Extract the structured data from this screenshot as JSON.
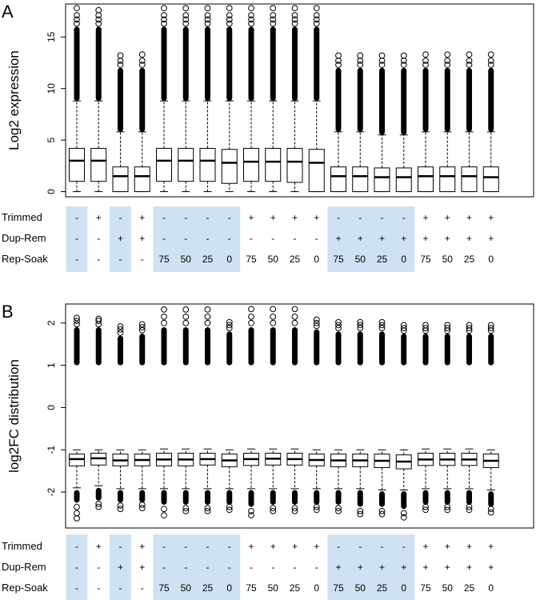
{
  "chart_data": [
    {
      "type": "box",
      "panel_label": "A",
      "ylabel": "Log2 expression",
      "ylim": [
        -0.5,
        18.2
      ],
      "yticks": [
        0,
        5,
        10,
        15
      ],
      "grid": false,
      "boxes": [
        {
          "q1": 1.0,
          "median": 3.0,
          "q3": 4.2,
          "whisker_low": 0.0,
          "whisker_high": 8.8,
          "outliers_from": 8.8,
          "outliers_to": 16.0,
          "outlier_points": [
            16.3,
            16.7,
            17.1,
            17.8
          ]
        },
        {
          "q1": 1.0,
          "median": 3.0,
          "q3": 4.2,
          "whisker_low": 0.0,
          "whisker_high": 8.8,
          "outliers_from": 8.8,
          "outliers_to": 16.0,
          "outlier_points": [
            16.3,
            16.7,
            17.1,
            17.6
          ]
        },
        {
          "q1": 0.0,
          "median": 1.5,
          "q3": 2.4,
          "whisker_low": 0.0,
          "whisker_high": 5.8,
          "outliers_from": 5.8,
          "outliers_to": 12.0,
          "outlier_points": [
            12.3,
            12.7,
            13.2
          ]
        },
        {
          "q1": 0.0,
          "median": 1.5,
          "q3": 2.4,
          "whisker_low": 0.0,
          "whisker_high": 5.8,
          "outliers_from": 5.8,
          "outliers_to": 12.0,
          "outlier_points": [
            12.3,
            12.7,
            13.3
          ]
        },
        {
          "q1": 1.0,
          "median": 3.0,
          "q3": 4.2,
          "whisker_low": 0.0,
          "whisker_high": 8.8,
          "outliers_from": 8.8,
          "outliers_to": 16.0,
          "outlier_points": [
            16.3,
            16.7,
            17.1,
            17.8
          ]
        },
        {
          "q1": 1.0,
          "median": 3.0,
          "q3": 4.2,
          "whisker_low": 0.0,
          "whisker_high": 8.8,
          "outliers_from": 8.8,
          "outliers_to": 16.0,
          "outlier_points": [
            16.3,
            16.7,
            17.1,
            17.8
          ]
        },
        {
          "q1": 1.0,
          "median": 3.0,
          "q3": 4.2,
          "whisker_low": 0.0,
          "whisker_high": 8.8,
          "outliers_from": 8.8,
          "outliers_to": 16.0,
          "outlier_points": [
            16.3,
            16.7,
            17.1,
            17.8
          ]
        },
        {
          "q1": 0.8,
          "median": 2.8,
          "q3": 4.1,
          "whisker_low": 0.0,
          "whisker_high": 8.8,
          "outliers_from": 8.8,
          "outliers_to": 16.0,
          "outlier_points": [
            16.3,
            16.7,
            17.1,
            17.8
          ]
        },
        {
          "q1": 1.0,
          "median": 2.9,
          "q3": 4.2,
          "whisker_low": 0.0,
          "whisker_high": 8.8,
          "outliers_from": 8.8,
          "outliers_to": 16.0,
          "outlier_points": [
            16.3,
            16.7,
            17.1,
            17.8
          ]
        },
        {
          "q1": 1.0,
          "median": 2.9,
          "q3": 4.2,
          "whisker_low": 0.0,
          "whisker_high": 8.8,
          "outliers_from": 8.8,
          "outliers_to": 16.0,
          "outlier_points": [
            16.3,
            16.7,
            17.1,
            17.8
          ]
        },
        {
          "q1": 0.9,
          "median": 2.9,
          "q3": 4.2,
          "whisker_low": 0.0,
          "whisker_high": 8.8,
          "outliers_from": 8.8,
          "outliers_to": 16.0,
          "outlier_points": [
            16.3,
            16.7,
            17.1,
            17.8
          ]
        },
        {
          "q1": 0.0,
          "median": 2.8,
          "q3": 4.1,
          "whisker_low": 0.0,
          "whisker_high": 8.8,
          "outliers_from": 8.8,
          "outliers_to": 16.0,
          "outlier_points": [
            16.3,
            16.7,
            17.1,
            17.8
          ]
        },
        {
          "q1": 0.0,
          "median": 1.5,
          "q3": 2.4,
          "whisker_low": 0.0,
          "whisker_high": 5.8,
          "outliers_from": 5.8,
          "outliers_to": 12.0,
          "outlier_points": [
            12.3,
            12.7,
            13.2
          ]
        },
        {
          "q1": 0.0,
          "median": 1.5,
          "q3": 2.4,
          "whisker_low": 0.0,
          "whisker_high": 5.8,
          "outliers_from": 5.8,
          "outliers_to": 12.0,
          "outlier_points": [
            12.3,
            12.7,
            13.2
          ]
        },
        {
          "q1": 0.0,
          "median": 1.4,
          "q3": 2.3,
          "whisker_low": 0.0,
          "whisker_high": 5.5,
          "outliers_from": 5.5,
          "outliers_to": 12.0,
          "outlier_points": [
            12.3,
            12.7,
            13.2
          ]
        },
        {
          "q1": 0.0,
          "median": 1.4,
          "q3": 2.3,
          "whisker_low": 0.0,
          "whisker_high": 5.5,
          "outliers_from": 5.5,
          "outliers_to": 12.0,
          "outlier_points": [
            12.3,
            12.7,
            13.2
          ]
        },
        {
          "q1": 0.0,
          "median": 1.5,
          "q3": 2.4,
          "whisker_low": 0.0,
          "whisker_high": 5.8,
          "outliers_from": 5.8,
          "outliers_to": 12.0,
          "outlier_points": [
            12.3,
            12.7,
            13.3
          ]
        },
        {
          "q1": 0.0,
          "median": 1.5,
          "q3": 2.4,
          "whisker_low": 0.0,
          "whisker_high": 5.8,
          "outliers_from": 5.8,
          "outliers_to": 12.0,
          "outlier_points": [
            12.3,
            12.7,
            13.3
          ]
        },
        {
          "q1": 0.0,
          "median": 1.5,
          "q3": 2.4,
          "whisker_low": 0.0,
          "whisker_high": 5.8,
          "outliers_from": 5.8,
          "outliers_to": 12.0,
          "outlier_points": [
            12.3,
            12.7,
            13.3
          ]
        },
        {
          "q1": 0.0,
          "median": 1.4,
          "q3": 2.4,
          "whisker_low": 0.0,
          "whisker_high": 5.8,
          "outliers_from": 5.8,
          "outliers_to": 12.0,
          "outlier_points": [
            12.3,
            12.7,
            13.3
          ]
        }
      ]
    },
    {
      "type": "box",
      "panel_label": "B",
      "ylabel": "log2FC distribution",
      "ylim": [
        -2.85,
        2.45
      ],
      "yticks": [
        -2,
        -1,
        0,
        1,
        2
      ],
      "grid": false,
      "boxes": [
        {
          "q1": -1.38,
          "median": -1.22,
          "q3": -1.1,
          "whisker_low": -1.9,
          "whisker_high": -1.0,
          "upper_outliers_from": 1.0,
          "upper_outliers_to": 1.9,
          "upper_points": [
            1.97,
            2.05,
            2.12
          ],
          "lower_outliers_from": -1.95,
          "lower_outliers_to": -2.25,
          "lower_points": [
            -2.35,
            -2.5,
            -2.62
          ]
        },
        {
          "q1": -1.36,
          "median": -1.2,
          "q3": -1.08,
          "whisker_low": -1.85,
          "whisker_high": -1.0,
          "upper_outliers_from": 1.0,
          "upper_outliers_to": 1.9,
          "upper_points": [
            1.97,
            2.05,
            2.1
          ],
          "lower_outliers_from": -1.9,
          "lower_outliers_to": -2.2,
          "lower_points": [
            -2.28,
            -2.35
          ]
        },
        {
          "q1": -1.38,
          "median": -1.25,
          "q3": -1.1,
          "whisker_low": -1.92,
          "whisker_high": -1.0,
          "upper_outliers_from": 1.0,
          "upper_outliers_to": 1.7,
          "upper_points": [
            1.77,
            1.85,
            1.92
          ],
          "lower_outliers_from": -1.95,
          "lower_outliers_to": -2.25,
          "lower_points": [
            -2.32,
            -2.4
          ]
        },
        {
          "q1": -1.38,
          "median": -1.24,
          "q3": -1.1,
          "whisker_low": -1.92,
          "whisker_high": -1.0,
          "upper_outliers_from": 1.0,
          "upper_outliers_to": 1.75,
          "upper_points": [
            1.83,
            1.9,
            1.97
          ],
          "lower_outliers_from": -1.95,
          "lower_outliers_to": -2.25,
          "lower_points": [
            -2.3,
            -2.38
          ]
        },
        {
          "q1": -1.38,
          "median": -1.23,
          "q3": -1.08,
          "whisker_low": -1.92,
          "whisker_high": -0.98,
          "upper_outliers_from": 1.0,
          "upper_outliers_to": 1.9,
          "upper_points": [
            2.0,
            2.15,
            2.32
          ],
          "lower_outliers_from": -1.95,
          "lower_outliers_to": -2.3,
          "lower_points": [
            -2.4,
            -2.55
          ]
        },
        {
          "q1": -1.38,
          "median": -1.23,
          "q3": -1.08,
          "whisker_low": -1.92,
          "whisker_high": -0.98,
          "upper_outliers_from": 1.0,
          "upper_outliers_to": 1.9,
          "upper_points": [
            2.0,
            2.15,
            2.32
          ],
          "lower_outliers_from": -1.95,
          "lower_outliers_to": -2.3,
          "lower_points": [
            -2.38,
            -2.45
          ]
        },
        {
          "q1": -1.36,
          "median": -1.22,
          "q3": -1.08,
          "whisker_low": -1.92,
          "whisker_high": -0.98,
          "upper_outliers_from": 1.0,
          "upper_outliers_to": 1.9,
          "upper_points": [
            2.0,
            2.15,
            2.32
          ],
          "lower_outliers_from": -1.95,
          "lower_outliers_to": -2.3,
          "lower_points": [
            -2.38,
            -2.45
          ]
        },
        {
          "q1": -1.4,
          "median": -1.25,
          "q3": -1.1,
          "whisker_low": -1.92,
          "whisker_high": -1.0,
          "upper_outliers_from": 1.0,
          "upper_outliers_to": 1.8,
          "upper_points": [
            1.88,
            1.95,
            2.02
          ],
          "lower_outliers_from": -1.95,
          "lower_outliers_to": -2.3,
          "lower_points": [
            -2.35,
            -2.42
          ]
        },
        {
          "q1": -1.37,
          "median": -1.22,
          "q3": -1.08,
          "whisker_low": -1.92,
          "whisker_high": -0.98,
          "upper_outliers_from": 1.0,
          "upper_outliers_to": 1.9,
          "upper_points": [
            2.0,
            2.15,
            2.33
          ],
          "lower_outliers_from": -1.95,
          "lower_outliers_to": -2.35,
          "lower_points": [
            -2.45,
            -2.55
          ]
        },
        {
          "q1": -1.36,
          "median": -1.21,
          "q3": -1.08,
          "whisker_low": -1.92,
          "whisker_high": -0.98,
          "upper_outliers_from": 1.0,
          "upper_outliers_to": 1.9,
          "upper_points": [
            2.0,
            2.15,
            2.33
          ],
          "lower_outliers_from": -1.95,
          "lower_outliers_to": -2.3,
          "lower_points": [
            -2.38,
            -2.45
          ]
        },
        {
          "q1": -1.36,
          "median": -1.22,
          "q3": -1.08,
          "whisker_low": -1.92,
          "whisker_high": -0.98,
          "upper_outliers_from": 1.0,
          "upper_outliers_to": 1.9,
          "upper_points": [
            2.0,
            2.15,
            2.33
          ],
          "lower_outliers_from": -1.95,
          "lower_outliers_to": -2.3,
          "lower_points": [
            -2.38,
            -2.45
          ]
        },
        {
          "q1": -1.38,
          "median": -1.24,
          "q3": -1.1,
          "whisker_low": -1.92,
          "whisker_high": -1.0,
          "upper_outliers_from": 1.0,
          "upper_outliers_to": 1.85,
          "upper_points": [
            1.93,
            2.0,
            2.08
          ],
          "lower_outliers_from": -1.95,
          "lower_outliers_to": -2.3,
          "lower_points": [
            -2.35,
            -2.42
          ]
        },
        {
          "q1": -1.4,
          "median": -1.25,
          "q3": -1.1,
          "whisker_low": -1.92,
          "whisker_high": -1.0,
          "upper_outliers_from": 1.0,
          "upper_outliers_to": 1.8,
          "upper_points": [
            1.88,
            1.95,
            2.02
          ],
          "lower_outliers_from": -1.95,
          "lower_outliers_to": -2.3,
          "lower_points": [
            -2.38,
            -2.45
          ]
        },
        {
          "q1": -1.4,
          "median": -1.25,
          "q3": -1.1,
          "whisker_low": -1.92,
          "whisker_high": -1.0,
          "upper_outliers_from": 1.0,
          "upper_outliers_to": 1.8,
          "upper_points": [
            1.88,
            1.95,
            2.02
          ],
          "lower_outliers_from": -1.95,
          "lower_outliers_to": -2.35,
          "lower_points": [
            -2.45,
            -2.52
          ]
        },
        {
          "q1": -1.42,
          "median": -1.26,
          "q3": -1.1,
          "whisker_low": -1.95,
          "whisker_high": -1.0,
          "upper_outliers_from": 1.0,
          "upper_outliers_to": 1.8,
          "upper_points": [
            1.88,
            1.95,
            2.02
          ],
          "lower_outliers_from": -1.98,
          "lower_outliers_to": -2.35,
          "lower_points": [
            -2.45,
            -2.52
          ]
        },
        {
          "q1": -1.45,
          "median": -1.28,
          "q3": -1.12,
          "whisker_low": -1.95,
          "whisker_high": -1.0,
          "upper_outliers_from": 1.0,
          "upper_outliers_to": 1.75,
          "upper_points": [
            1.82,
            1.88,
            1.95
          ],
          "lower_outliers_from": -1.98,
          "lower_outliers_to": -2.4,
          "lower_points": [
            -2.5,
            -2.6
          ]
        },
        {
          "q1": -1.37,
          "median": -1.23,
          "q3": -1.08,
          "whisker_low": -1.92,
          "whisker_high": -0.98,
          "upper_outliers_from": 1.0,
          "upper_outliers_to": 1.75,
          "upper_points": [
            1.82,
            1.88,
            1.95
          ],
          "lower_outliers_from": -1.95,
          "lower_outliers_to": -2.3,
          "lower_points": [
            -2.35,
            -2.42
          ]
        },
        {
          "q1": -1.37,
          "median": -1.23,
          "q3": -1.08,
          "whisker_low": -1.92,
          "whisker_high": -0.98,
          "upper_outliers_from": 1.0,
          "upper_outliers_to": 1.75,
          "upper_points": [
            1.82,
            1.88,
            1.95
          ],
          "lower_outliers_from": -1.95,
          "lower_outliers_to": -2.3,
          "lower_points": [
            -2.35,
            -2.42
          ]
        },
        {
          "q1": -1.37,
          "median": -1.23,
          "q3": -1.08,
          "whisker_low": -1.92,
          "whisker_high": -0.98,
          "upper_outliers_from": 1.0,
          "upper_outliers_to": 1.75,
          "upper_points": [
            1.82,
            1.88,
            1.95
          ],
          "lower_outliers_from": -1.95,
          "lower_outliers_to": -2.3,
          "lower_points": [
            -2.35,
            -2.42
          ]
        },
        {
          "q1": -1.42,
          "median": -1.26,
          "q3": -1.1,
          "whisker_low": -1.95,
          "whisker_high": -1.0,
          "upper_outliers_from": 1.0,
          "upper_outliers_to": 1.75,
          "upper_points": [
            1.82,
            1.88,
            1.95
          ],
          "lower_outliers_from": -1.98,
          "lower_outliers_to": -2.35,
          "lower_points": [
            -2.4,
            -2.48
          ]
        }
      ]
    }
  ],
  "conditions": {
    "row_labels": [
      "Trimmed",
      "Dup-Rem",
      "Rep-Soak"
    ],
    "trimmed": [
      "-",
      "+",
      "-",
      "+",
      "-",
      "-",
      "-",
      "-",
      "+",
      "+",
      "+",
      "+",
      "-",
      "-",
      "-",
      "-",
      "+",
      "+",
      "+",
      "+"
    ],
    "dup_rem": [
      "-",
      "-",
      "+",
      "+",
      "-",
      "-",
      "-",
      "-",
      "-",
      "-",
      "-",
      "-",
      "+",
      "+",
      "+",
      "+",
      "+",
      "+",
      "+",
      "+"
    ],
    "rep_soak": [
      "-",
      "-",
      "-",
      "-",
      "75",
      "50",
      "25",
      "0",
      "75",
      "50",
      "25",
      "0",
      "75",
      "50",
      "25",
      "0",
      "75",
      "50",
      "25",
      "0"
    ],
    "highlight_groups": [
      [
        0,
        0
      ],
      [
        2,
        2
      ],
      [
        4,
        7
      ],
      [
        12,
        15
      ]
    ],
    "highlight_color": "#cfe2f3"
  },
  "style": {
    "box_color": "#000000",
    "box_fill": "#ffffff",
    "outlier_color": "#000000"
  }
}
